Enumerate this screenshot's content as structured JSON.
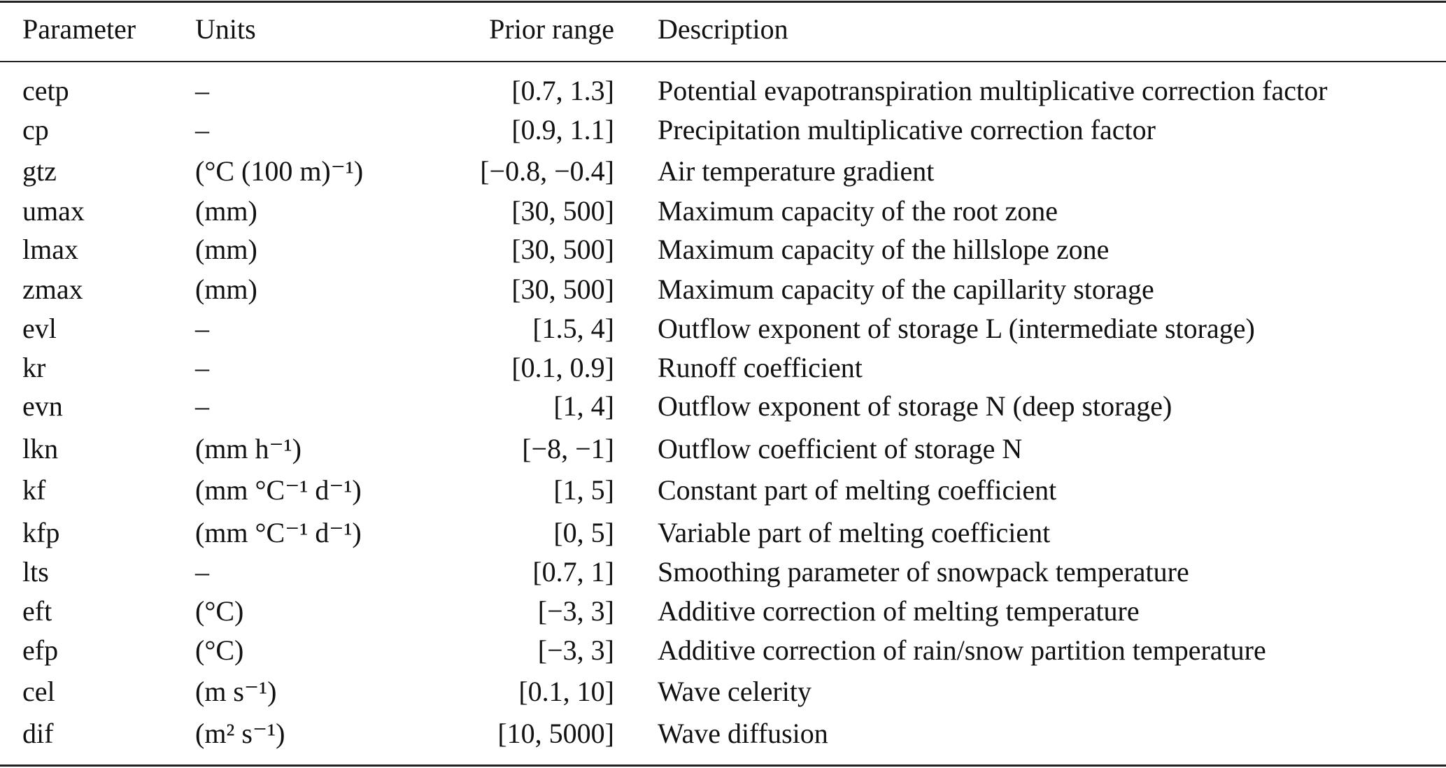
{
  "table": {
    "header": [
      "Parameter",
      "Units",
      "Prior range",
      "Description"
    ],
    "rows": [
      [
        "cetp",
        "–",
        "[0.7, 1.3]",
        "Potential evapotranspiration multiplicative correction factor"
      ],
      [
        "cp",
        "–",
        "[0.9, 1.1]",
        "Precipitation multiplicative correction factor"
      ],
      [
        "gtz",
        "(°C (100 m)⁻¹)",
        "[−0.8, −0.4]",
        "Air temperature gradient"
      ],
      [
        "umax",
        "(mm)",
        "[30, 500]",
        "Maximum capacity of the root zone"
      ],
      [
        "lmax",
        "(mm)",
        "[30, 500]",
        "Maximum capacity of the hillslope zone"
      ],
      [
        "zmax",
        "(mm)",
        "[30, 500]",
        "Maximum capacity of the capillarity storage"
      ],
      [
        "evl",
        "–",
        "[1.5, 4]",
        "Outflow exponent of storage L (intermediate storage)"
      ],
      [
        "kr",
        "–",
        "[0.1, 0.9]",
        "Runoff coefficient"
      ],
      [
        "evn",
        "–",
        "[1, 4]",
        "Outflow exponent of storage N (deep storage)"
      ],
      [
        "lkn",
        "(mm h⁻¹)",
        "[−8, −1]",
        "Outflow coefficient of storage N"
      ],
      [
        "kf",
        "(mm °C⁻¹ d⁻¹)",
        "[1, 5]",
        "Constant part of melting coefficient"
      ],
      [
        "kfp",
        "(mm °C⁻¹ d⁻¹)",
        "[0, 5]",
        "Variable part of melting coefficient"
      ],
      [
        "lts",
        "–",
        "[0.7, 1]",
        "Smoothing parameter of snowpack temperature"
      ],
      [
        "eft",
        "(°C)",
        "[−3, 3]",
        "Additive correction of melting temperature"
      ],
      [
        "efp",
        "(°C)",
        "[−3, 3]",
        "Additive correction of rain/snow partition temperature"
      ],
      [
        "cel",
        "(m s⁻¹)",
        "[0.1, 10]",
        "Wave celerity"
      ],
      [
        "dif",
        "(m² s⁻¹)",
        "[10, 5000]",
        "Wave diffusion"
      ]
    ]
  }
}
